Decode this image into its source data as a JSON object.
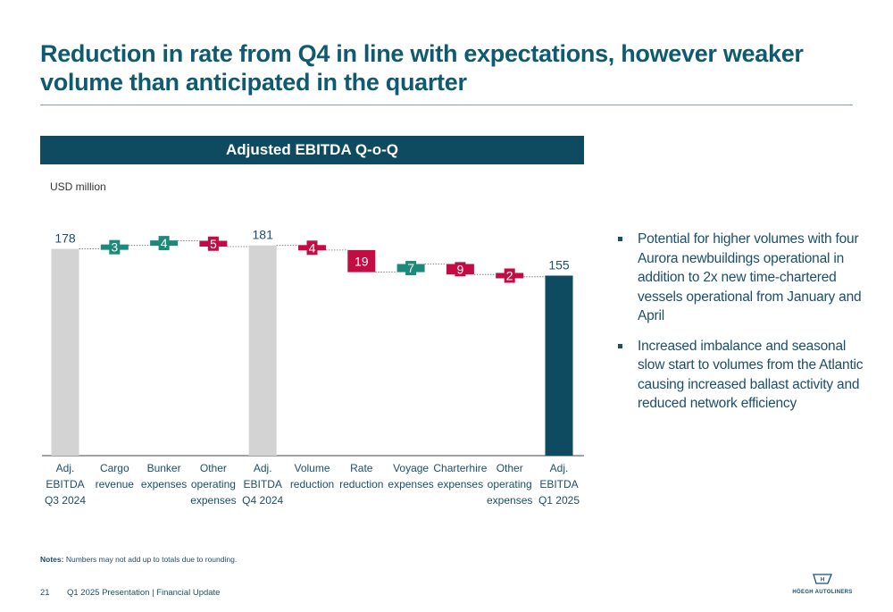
{
  "title": "Reduction in rate from Q4 in line with expectations, however weaker volume than anticipated in the quarter",
  "chart_header": "Adjusted EBITDA Q-o-Q",
  "unit_label": "USD million",
  "bullets": [
    "Potential for higher volumes with four Aurora newbuildings operational in addition to 2x new time-chartered vessels operational from January and April",
    "Increased imbalance and seasonal slow start to volumes from the Atlantic causing increased ballast activity and reduced network efficiency"
  ],
  "notes": {
    "label": "Notes:",
    "text": "Numbers may not add up to totals due to rounding."
  },
  "footer": {
    "page": "21",
    "text": "Q1 2025 Presentation | Financial Update"
  },
  "logo": {
    "icon": "ship-logo-icon",
    "text": "HÖEGH AUTOLINERS"
  },
  "colors": {
    "total": "#d3d3d3",
    "final": "#0e4a60",
    "increase": "#1a8a7a",
    "decrease": "#c20c43",
    "header": "#0e4a60"
  },
  "chart_data": {
    "type": "waterfall",
    "title": "Adjusted EBITDA Q-o-Q",
    "ylabel": "USD million",
    "ylim": [
      0,
      200
    ],
    "categories": [
      [
        "Adj.",
        "EBITDA",
        "Q3 2024"
      ],
      [
        "Cargo",
        "revenue"
      ],
      [
        "Bunker",
        "expenses"
      ],
      [
        "Other",
        "operating",
        "expenses"
      ],
      [
        "Adj.",
        "EBITDA",
        "Q4 2024"
      ],
      [
        "Volume",
        "reduction"
      ],
      [
        "Rate",
        "reduction"
      ],
      [
        "Voyage",
        "expenses"
      ],
      [
        "Charterhire",
        "expenses"
      ],
      [
        "Other",
        "operating",
        "expenses"
      ],
      [
        "Adj.",
        "EBITDA",
        "Q1 2025"
      ]
    ],
    "bars": [
      {
        "kind": "total",
        "value": 178,
        "label": "178"
      },
      {
        "kind": "increase",
        "value": 3,
        "label": "3"
      },
      {
        "kind": "increase",
        "value": 4,
        "label": "4"
      },
      {
        "kind": "decrease",
        "value": -5,
        "label": "5"
      },
      {
        "kind": "total",
        "value": 181,
        "label": "181"
      },
      {
        "kind": "decrease",
        "value": -4,
        "label": "4"
      },
      {
        "kind": "decrease",
        "value": -19,
        "label": "19"
      },
      {
        "kind": "increase",
        "value": 7,
        "label": "7"
      },
      {
        "kind": "decrease",
        "value": -9,
        "label": "9"
      },
      {
        "kind": "decrease",
        "value": -2,
        "label": "2"
      },
      {
        "kind": "final",
        "value": 155,
        "label": "155"
      }
    ]
  }
}
